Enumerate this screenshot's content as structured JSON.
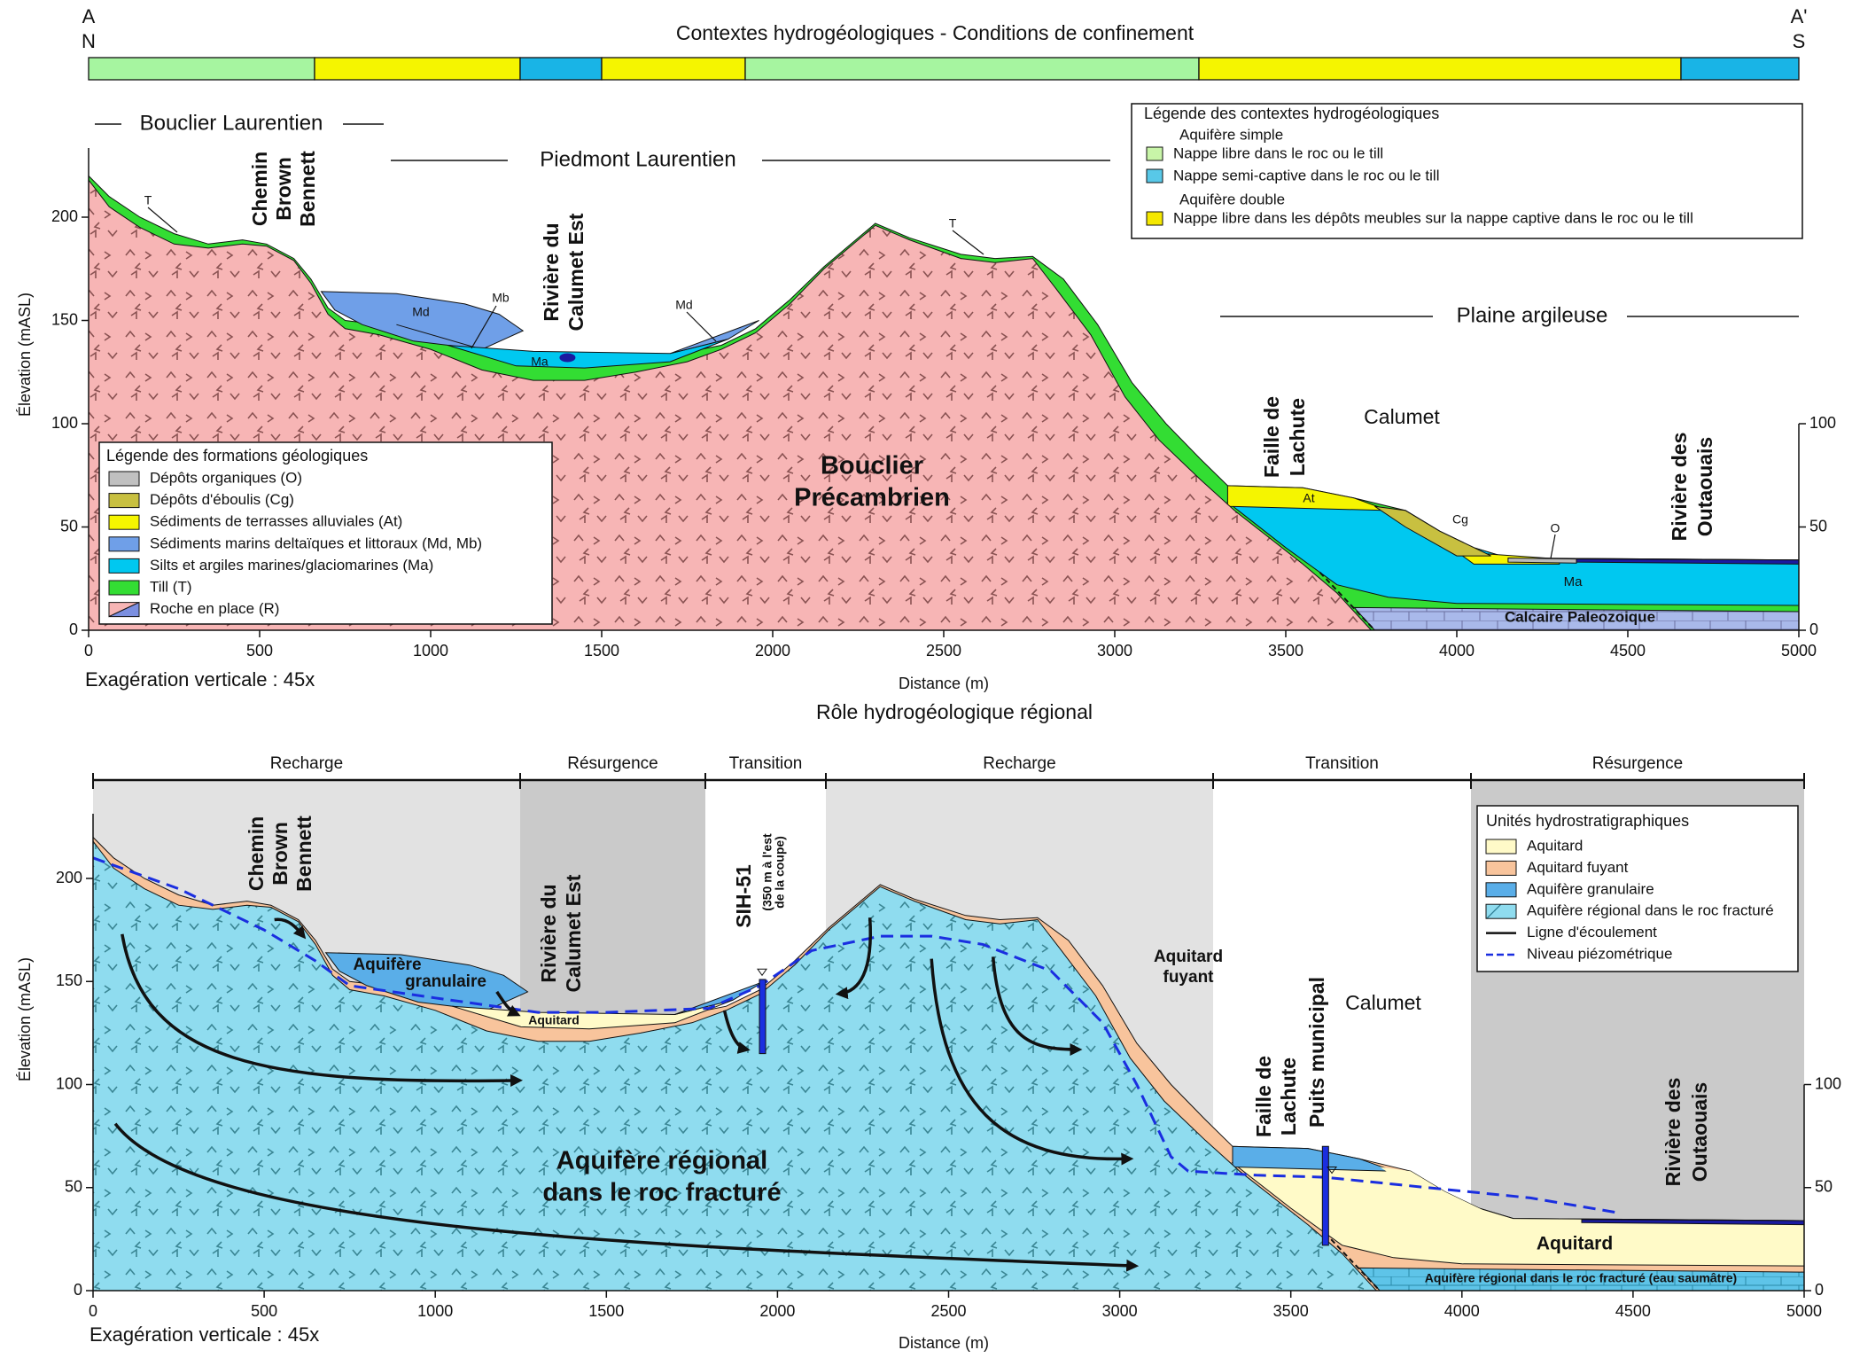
{
  "top": {
    "corner_left": [
      "A",
      "N"
    ],
    "corner_right": [
      "A'",
      "S"
    ],
    "title": "Contextes hydrogéologiques - Conditions de confinement",
    "regions": [
      "Bouclier Laurentien",
      "Piedmont Laurentien",
      "Plaine argileuse"
    ],
    "labels": [
      [
        "Chemin",
        "Brown",
        "Bennett"
      ],
      [
        "Rivière du",
        "Calumet Est"
      ],
      [
        "Faille de",
        "Lachute"
      ],
      [
        "Rivière des",
        "Outaouais"
      ],
      [
        "Calumet"
      ],
      [
        "Bouclier",
        "Précambrien"
      ],
      [
        "T"
      ],
      [
        "Md"
      ],
      [
        "Mb"
      ],
      [
        "Ma"
      ],
      [
        "Md"
      ],
      [
        "T"
      ],
      [
        "At"
      ],
      [
        "Cg"
      ],
      [
        "O"
      ],
      [
        "Ma"
      ],
      [
        "Calcaire Paleozoique"
      ]
    ],
    "hydro_legend": {
      "title": "Légende des contextes hydrogéologiques",
      "groups": [
        {
          "title": "Aquifère simple",
          "items": [
            "Nappe libre dans le roc ou le till",
            "Nappe semi-captive dans le roc ou le till"
          ]
        },
        {
          "title": "Aquifère double",
          "items": [
            "Nappe libre dans les dépôts meubles sur la nappe captive dans le roc ou le till"
          ]
        }
      ]
    },
    "geo_legend": {
      "title": "Légende des formations géologiques",
      "items": [
        "Dépôts organiques (O)",
        "Dépôts d'éboulis (Cg)",
        "Sédiments de terrasses alluviales (At)",
        "Sédiments marins deltaïques et littoraux (Md, Mb)",
        "Silts et argiles marines/glaciomarines (Ma)",
        "Till (T)",
        "Roche en place (R)"
      ]
    },
    "y_label": "Élevation (mASL)",
    "x_label": "Distance (m)",
    "exaggeration": "Exagération verticale : 45x",
    "x_ticks": [
      0,
      500,
      1000,
      1500,
      2000,
      2500,
      3000,
      3500,
      4000,
      4500,
      5000
    ],
    "y_ticks": [
      0,
      50,
      100,
      150,
      200
    ],
    "y2_ticks": [
      0,
      50,
      100
    ]
  },
  "bottom": {
    "title": "Rôle hydrogéologique régional",
    "zones": [
      "Recharge",
      "Résurgence",
      "Transition",
      "Recharge",
      "Transition",
      "Résurgence"
    ],
    "labels": [
      [
        "Chemin",
        "Brown",
        "Bennett"
      ],
      [
        "Rivière du",
        "Calumet Est"
      ],
      [
        "SIH-51"
      ],
      [
        "(350 m à l'est",
        "de la coupe)"
      ],
      [
        "Aquifère",
        "granulaire"
      ],
      [
        "Aquitard"
      ],
      [
        "Aquitard",
        "fuyant"
      ],
      [
        "Calumet"
      ],
      [
        "Faille de",
        "Lachute"
      ],
      [
        "Puits municipal"
      ],
      [
        "Rivière des",
        "Outaouais"
      ],
      [
        "Aquifère régional",
        "dans le roc fracturé"
      ],
      [
        "Aquitard"
      ],
      [
        "Aquifère régional dans le roc fracturé (eau saumâtre)"
      ]
    ],
    "legend": {
      "title": "Unités hydrostratigraphiques",
      "items": [
        "Aquitard",
        "Aquitard fuyant",
        "Aquifère granulaire",
        "Aquifère régional dans le roc fracturé",
        "Ligne d'écoulement",
        "Niveau piézométrique"
      ]
    },
    "y_label": "Élevation (mASL)",
    "x_label": "Distance (m)",
    "exaggeration": "Exagération verticale : 45x",
    "x_ticks": [
      0,
      500,
      1000,
      1500,
      2000,
      2500,
      3000,
      3500,
      4000,
      4500,
      5000
    ],
    "y_ticks": [
      0,
      50,
      100,
      150,
      200
    ],
    "y2_ticks": [
      0,
      50,
      100
    ]
  }
}
